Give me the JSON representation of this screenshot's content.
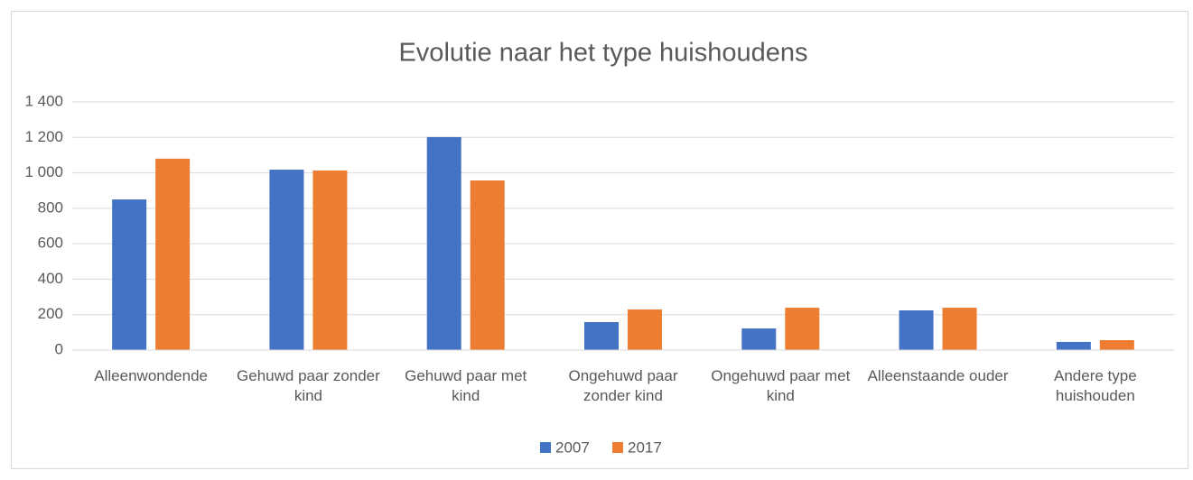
{
  "chart_data": {
    "type": "bar",
    "title": "Evolutie naar het type huishoudens",
    "categories": [
      "Alleenwondende",
      "Gehuwd paar zonder kind",
      "Gehuwd paar met kind",
      "Ongehuwd paar zonder kind",
      "Ongehuwd paar met kind",
      "Alleenstaande ouder",
      "Andere type huishouden"
    ],
    "series": [
      {
        "name": "2007",
        "color": "#4472c4",
        "values": [
          850,
          1018,
          1202,
          158,
          122,
          224,
          46
        ]
      },
      {
        "name": "2017",
        "color": "#ed7d31",
        "values": [
          1080,
          1013,
          957,
          229,
          239,
          239,
          56
        ]
      }
    ],
    "ylim": [
      0,
      1400
    ],
    "yticks": [
      0,
      200,
      400,
      600,
      800,
      {
        "value": 1000,
        "label": "1 000"
      },
      {
        "value": 1200,
        "label": "1 200"
      },
      {
        "value": 1400,
        "label": "1 400"
      }
    ],
    "grid": true,
    "legend": "bottom"
  }
}
